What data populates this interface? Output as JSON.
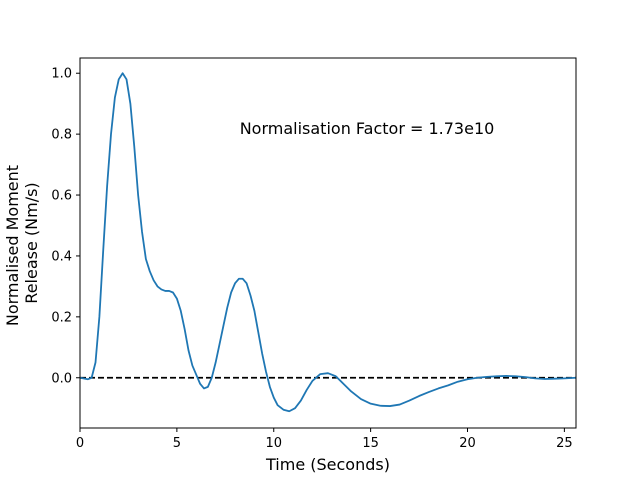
{
  "chart_data": {
    "type": "line",
    "xlabel": "Time (Seconds)",
    "ylabel_lines": [
      "Normalised Moment",
      "Release (Nm/s)"
    ],
    "annotation": "Normalisation Factor = 1.73e10",
    "xlim": [
      0,
      25.6
    ],
    "ylim": [
      -0.165,
      1.05
    ],
    "x_ticks": [
      0,
      5,
      10,
      15,
      20,
      25
    ],
    "y_ticks": [
      0.0,
      0.2,
      0.4,
      0.6,
      0.8,
      1.0
    ],
    "x_tick_labels": [
      "0",
      "5",
      "10",
      "15",
      "20",
      "25"
    ],
    "y_tick_labels": [
      "0.0",
      "0.2",
      "0.4",
      "0.6",
      "0.8",
      "1.0"
    ],
    "grid": false,
    "reference_line": {
      "y": 0.0,
      "style": "dashed",
      "color": "#000000"
    },
    "series": [
      {
        "color": "#1f77b4",
        "points": [
          [
            0,
            0.0
          ],
          [
            0.4,
            -0.005
          ],
          [
            0.6,
            0.0
          ],
          [
            0.8,
            0.05
          ],
          [
            1.0,
            0.2
          ],
          [
            1.2,
            0.42
          ],
          [
            1.4,
            0.63
          ],
          [
            1.6,
            0.8
          ],
          [
            1.8,
            0.92
          ],
          [
            2.0,
            0.98
          ],
          [
            2.2,
            1.0
          ],
          [
            2.4,
            0.98
          ],
          [
            2.6,
            0.9
          ],
          [
            2.8,
            0.76
          ],
          [
            3.0,
            0.6
          ],
          [
            3.2,
            0.48
          ],
          [
            3.4,
            0.39
          ],
          [
            3.6,
            0.35
          ],
          [
            3.8,
            0.32
          ],
          [
            4.0,
            0.3
          ],
          [
            4.2,
            0.29
          ],
          [
            4.4,
            0.285
          ],
          [
            4.6,
            0.285
          ],
          [
            4.8,
            0.28
          ],
          [
            5.0,
            0.26
          ],
          [
            5.2,
            0.22
          ],
          [
            5.4,
            0.16
          ],
          [
            5.6,
            0.09
          ],
          [
            5.8,
            0.04
          ],
          [
            6.0,
            0.01
          ],
          [
            6.2,
            -0.02
          ],
          [
            6.4,
            -0.035
          ],
          [
            6.6,
            -0.03
          ],
          [
            6.8,
            0.0
          ],
          [
            7.0,
            0.05
          ],
          [
            7.2,
            0.11
          ],
          [
            7.4,
            0.17
          ],
          [
            7.6,
            0.23
          ],
          [
            7.8,
            0.28
          ],
          [
            8.0,
            0.31
          ],
          [
            8.2,
            0.325
          ],
          [
            8.4,
            0.325
          ],
          [
            8.6,
            0.31
          ],
          [
            8.8,
            0.27
          ],
          [
            9.0,
            0.22
          ],
          [
            9.2,
            0.15
          ],
          [
            9.4,
            0.08
          ],
          [
            9.6,
            0.02
          ],
          [
            9.8,
            -0.03
          ],
          [
            10.0,
            -0.065
          ],
          [
            10.2,
            -0.09
          ],
          [
            10.5,
            -0.105
          ],
          [
            10.8,
            -0.11
          ],
          [
            11.1,
            -0.1
          ],
          [
            11.4,
            -0.075
          ],
          [
            11.7,
            -0.04
          ],
          [
            12.0,
            -0.01
          ],
          [
            12.4,
            0.012
          ],
          [
            12.8,
            0.015
          ],
          [
            13.2,
            0.005
          ],
          [
            13.6,
            -0.02
          ],
          [
            14.0,
            -0.045
          ],
          [
            14.5,
            -0.07
          ],
          [
            15.0,
            -0.085
          ],
          [
            15.5,
            -0.092
          ],
          [
            16.0,
            -0.093
          ],
          [
            16.5,
            -0.088
          ],
          [
            17.0,
            -0.075
          ],
          [
            17.5,
            -0.06
          ],
          [
            18.0,
            -0.047
          ],
          [
            18.5,
            -0.035
          ],
          [
            19.0,
            -0.025
          ],
          [
            19.5,
            -0.013
          ],
          [
            20.0,
            -0.005
          ],
          [
            20.5,
            0.0
          ],
          [
            21.0,
            0.003
          ],
          [
            21.5,
            0.005
          ],
          [
            22.0,
            0.006
          ],
          [
            22.5,
            0.005
          ],
          [
            23.0,
            0.002
          ],
          [
            23.5,
            -0.002
          ],
          [
            24.0,
            -0.004
          ],
          [
            24.5,
            -0.003
          ],
          [
            25.0,
            -0.002
          ],
          [
            25.6,
            0.0
          ]
        ]
      }
    ]
  }
}
